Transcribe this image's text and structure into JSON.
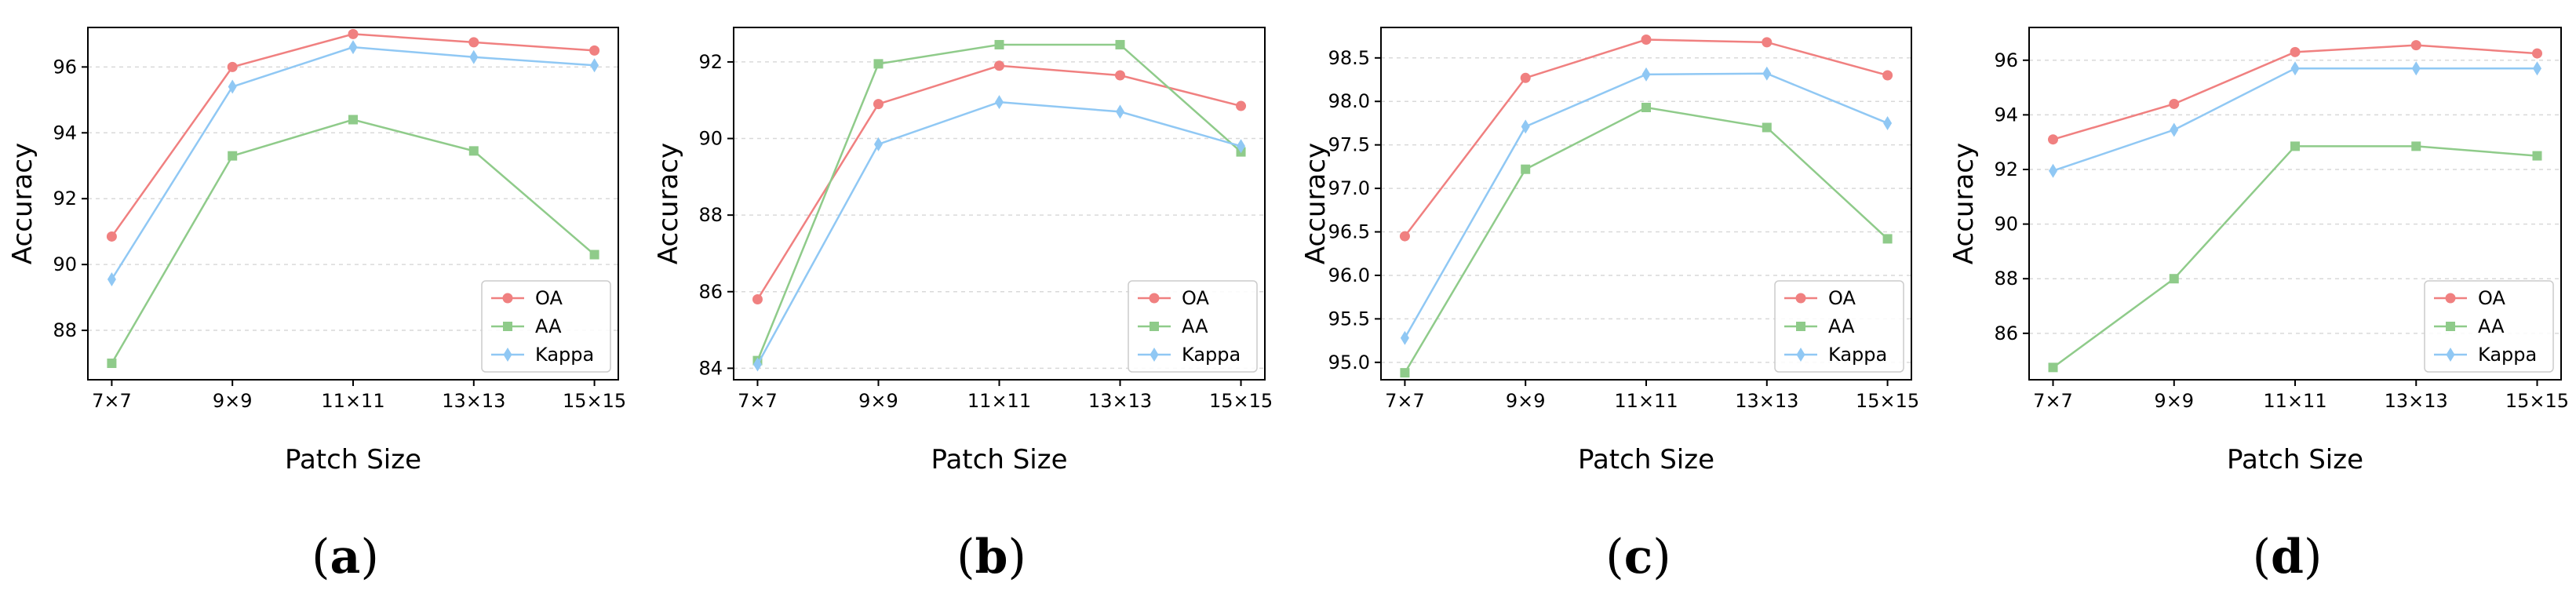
{
  "figure": {
    "panel_labels": [
      "(a)",
      "(b)",
      "(c)",
      "(d)"
    ]
  },
  "colors": {
    "OA": "#F08080",
    "AA": "#8FCB8A",
    "Kappa": "#90C8F4"
  },
  "chart_data": [
    {
      "type": "line",
      "panel": "(a)",
      "xlabel": "Patch Size",
      "ylabel": "Accuracy",
      "categories": [
        "7×7",
        "9×9",
        "11×11",
        "13×13",
        "15×15"
      ],
      "ylim": [
        86.5,
        97.2
      ],
      "yticks": [
        88,
        90,
        92,
        94,
        96
      ],
      "ytick_labels": [
        "88",
        "90",
        "92",
        "94",
        "96"
      ],
      "grid": "horizontal-dashed",
      "legend_position": "lower-right",
      "series": [
        {
          "name": "OA",
          "marker": "circle",
          "values": [
            90.85,
            96.0,
            97.0,
            96.75,
            96.5
          ]
        },
        {
          "name": "AA",
          "marker": "square",
          "values": [
            87.0,
            93.3,
            94.4,
            93.45,
            90.3
          ]
        },
        {
          "name": "Kappa",
          "marker": "diamond",
          "values": [
            89.55,
            95.4,
            96.6,
            96.3,
            96.05
          ]
        }
      ]
    },
    {
      "type": "line",
      "panel": "(b)",
      "xlabel": "Patch Size",
      "ylabel": "Accuracy",
      "categories": [
        "7×7",
        "9×9",
        "11×11",
        "13×13",
        "15×15"
      ],
      "ylim": [
        83.7,
        92.9
      ],
      "yticks": [
        84,
        86,
        88,
        90,
        92
      ],
      "ytick_labels": [
        "84",
        "86",
        "88",
        "90",
        "92"
      ],
      "grid": "horizontal-dashed",
      "legend_position": "lower-right",
      "series": [
        {
          "name": "OA",
          "marker": "circle",
          "values": [
            85.8,
            90.9,
            91.9,
            91.65,
            90.85
          ]
        },
        {
          "name": "AA",
          "marker": "square",
          "values": [
            84.2,
            91.95,
            92.45,
            92.45,
            89.65
          ]
        },
        {
          "name": "Kappa",
          "marker": "diamond",
          "values": [
            84.1,
            89.85,
            90.95,
            90.7,
            89.8
          ]
        }
      ]
    },
    {
      "type": "line",
      "panel": "(c)",
      "xlabel": "Patch Size",
      "ylabel": "Accuracy",
      "categories": [
        "7×7",
        "9×9",
        "11×11",
        "13×13",
        "15×15"
      ],
      "ylim": [
        94.8,
        98.85
      ],
      "yticks": [
        95.0,
        95.5,
        96.0,
        96.5,
        97.0,
        97.5,
        98.0,
        98.5
      ],
      "ytick_labels": [
        "95.0",
        "95.5",
        "96.0",
        "96.5",
        "97.0",
        "97.5",
        "98.0",
        "98.5"
      ],
      "grid": "horizontal-dashed",
      "legend_position": "lower-right",
      "series": [
        {
          "name": "OA",
          "marker": "circle",
          "values": [
            96.45,
            98.27,
            98.71,
            98.68,
            98.3
          ]
        },
        {
          "name": "AA",
          "marker": "square",
          "values": [
            94.88,
            97.22,
            97.93,
            97.7,
            96.42
          ]
        },
        {
          "name": "Kappa",
          "marker": "diamond",
          "values": [
            95.28,
            97.71,
            98.31,
            98.32,
            97.75
          ]
        }
      ]
    },
    {
      "type": "line",
      "panel": "(d)",
      "xlabel": "Patch Size",
      "ylabel": "Accuracy",
      "categories": [
        "7×7",
        "9×9",
        "11×11",
        "13×13",
        "15×15"
      ],
      "ylim": [
        84.3,
        97.2
      ],
      "yticks": [
        86,
        88,
        90,
        92,
        94,
        96
      ],
      "ytick_labels": [
        "86",
        "88",
        "90",
        "92",
        "94",
        "96"
      ],
      "grid": "horizontal-dashed",
      "legend_position": "lower-right",
      "series": [
        {
          "name": "OA",
          "marker": "circle",
          "values": [
            93.1,
            94.4,
            96.3,
            96.55,
            96.25
          ]
        },
        {
          "name": "AA",
          "marker": "square",
          "values": [
            84.75,
            88.0,
            92.85,
            92.85,
            92.5
          ]
        },
        {
          "name": "Kappa",
          "marker": "diamond",
          "values": [
            91.95,
            93.45,
            95.7,
            95.7,
            95.7
          ]
        }
      ]
    }
  ]
}
